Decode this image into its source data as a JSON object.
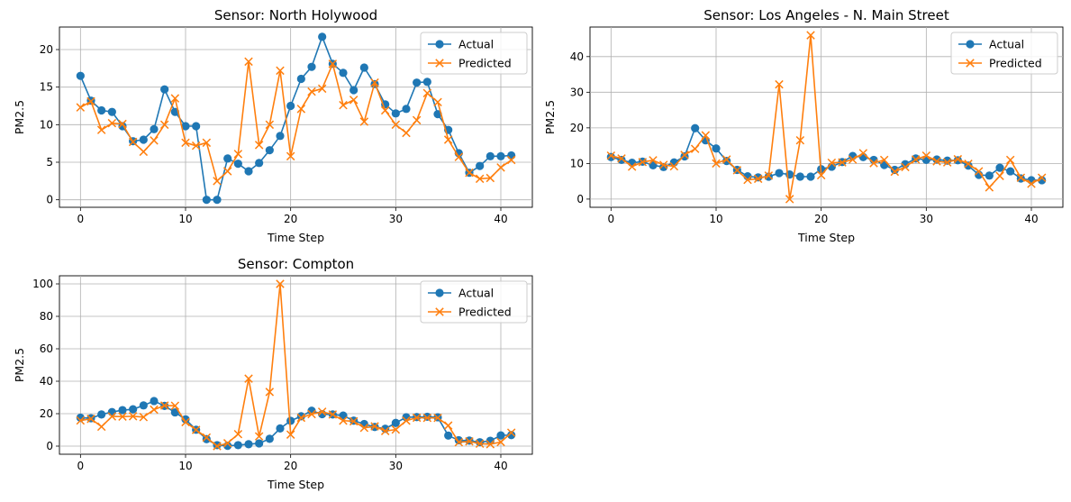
{
  "colors": {
    "actual": "#1f77b4",
    "predicted": "#ff7f0e",
    "grid": "#b0b0b0"
  },
  "chart_data": [
    {
      "type": "line",
      "title": "Sensor: North Holywood",
      "xlabel": "Time Step",
      "ylabel": "PM2.5",
      "xlim": [
        -2,
        43
      ],
      "ylim": [
        -1,
        23
      ],
      "xticks": [
        0,
        10,
        20,
        30,
        40
      ],
      "yticks": [
        0,
        5,
        10,
        15,
        20
      ],
      "grid": true,
      "legend": "top-right",
      "series": [
        {
          "name": "Actual",
          "marker": "circle",
          "values": [
            16.5,
            13.2,
            11.9,
            11.7,
            9.8,
            7.8,
            8.0,
            9.4,
            14.7,
            11.7,
            9.8,
            9.8,
            0.0,
            0.0,
            5.5,
            4.8,
            3.8,
            4.9,
            6.6,
            8.5,
            12.5,
            16.1,
            17.7,
            21.7,
            18.1,
            16.9,
            14.6,
            17.6,
            15.4,
            12.7,
            11.5,
            12.1,
            15.6,
            15.7,
            11.4,
            9.3,
            6.2,
            3.6,
            4.5,
            5.8,
            5.8,
            5.9
          ]
        },
        {
          "name": "Predicted",
          "marker": "x",
          "values": [
            12.3,
            13.1,
            9.3,
            10.2,
            10.1,
            7.7,
            6.4,
            7.9,
            10.0,
            13.5,
            7.6,
            7.2,
            7.6,
            2.5,
            3.8,
            6.1,
            18.4,
            7.3,
            10.0,
            17.2,
            5.8,
            12.1,
            14.4,
            14.8,
            18.1,
            12.6,
            13.3,
            10.4,
            15.6,
            11.9,
            10.0,
            8.9,
            10.6,
            14.2,
            13.0,
            8.0,
            5.7,
            3.6,
            2.8,
            2.9,
            4.3,
            5.3
          ]
        }
      ]
    },
    {
      "type": "line",
      "title": "Sensor: Los Angeles - N. Main Street",
      "xlabel": "Time Step",
      "ylabel": "PM2.5",
      "xlim": [
        -2,
        43
      ],
      "ylim": [
        -2.3,
        48.3
      ],
      "xticks": [
        0,
        10,
        20,
        30,
        40
      ],
      "yticks": [
        0,
        10,
        20,
        30,
        40
      ],
      "grid": true,
      "legend": "top-right",
      "series": [
        {
          "name": "Actual",
          "marker": "circle",
          "values": [
            11.8,
            11.0,
            10.2,
            10.5,
            9.5,
            9.0,
            10.3,
            12.0,
            19.9,
            16.5,
            14.2,
            10.7,
            8.2,
            6.4,
            6.1,
            6.3,
            7.3,
            6.9,
            6.3,
            6.3,
            8.4,
            9.1,
            10.4,
            12.1,
            11.8,
            11.0,
            9.6,
            8.2,
            9.8,
            11.4,
            11.0,
            11.1,
            10.8,
            10.9,
            9.4,
            6.8,
            6.6,
            8.8,
            7.8,
            5.8,
            5.3,
            5.3
          ]
        },
        {
          "name": "Predicted",
          "marker": "x",
          "values": [
            12.2,
            11.4,
            9.1,
            10.4,
            10.9,
            9.6,
            9.2,
            12.4,
            14.1,
            17.9,
            10.0,
            11.1,
            8.1,
            5.4,
            5.7,
            6.6,
            32.2,
            0.0,
            16.5,
            46.0,
            6.7,
            10.2,
            10.3,
            11.1,
            12.9,
            10.1,
            11.0,
            7.7,
            9.0,
            11.1,
            12.2,
            10.6,
            10.3,
            11.2,
            9.9,
            7.8,
            3.3,
            6.5,
            11.0,
            6.0,
            4.3,
            6.0
          ]
        }
      ]
    },
    {
      "type": "line",
      "title": "Sensor: Compton",
      "xlabel": "Time Step",
      "ylabel": "PM2.5",
      "xlim": [
        -2,
        43
      ],
      "ylim": [
        -5,
        105
      ],
      "xticks": [
        0,
        10,
        20,
        30,
        40
      ],
      "yticks": [
        0,
        20,
        40,
        60,
        80,
        100
      ],
      "grid": true,
      "legend": "top-right",
      "series": [
        {
          "name": "Actual",
          "marker": "circle",
          "values": [
            17.5,
            17.2,
            19.5,
            21.0,
            22.2,
            22.7,
            25.1,
            27.8,
            24.8,
            20.8,
            16.5,
            10.1,
            4.3,
            0.6,
            0.2,
            0.6,
            1.2,
            1.7,
            4.5,
            10.9,
            15.6,
            18.4,
            21.8,
            19.7,
            19.5,
            18.8,
            15.7,
            13.6,
            11.8,
            10.7,
            14.3,
            17.8,
            17.9,
            18.1,
            17.8,
            6.5,
            3.6,
            3.4,
            2.4,
            3.3,
            6.6,
            6.8
          ]
        },
        {
          "name": "Predicted",
          "marker": "x",
          "values": [
            15.8,
            16.8,
            12.0,
            18.3,
            18.2,
            18.4,
            17.9,
            22.5,
            25.0,
            24.9,
            14.8,
            10.0,
            5.3,
            0.0,
            1.8,
            7.4,
            41.6,
            6.0,
            33.4,
            100.0,
            7.1,
            17.5,
            19.7,
            21.2,
            19.5,
            15.7,
            15.3,
            11.3,
            12.2,
            9.3,
            10.2,
            15.7,
            17.5,
            17.4,
            17.4,
            12.7,
            2.4,
            2.9,
            1.5,
            1.2,
            2.5,
            8.3
          ]
        }
      ]
    }
  ]
}
